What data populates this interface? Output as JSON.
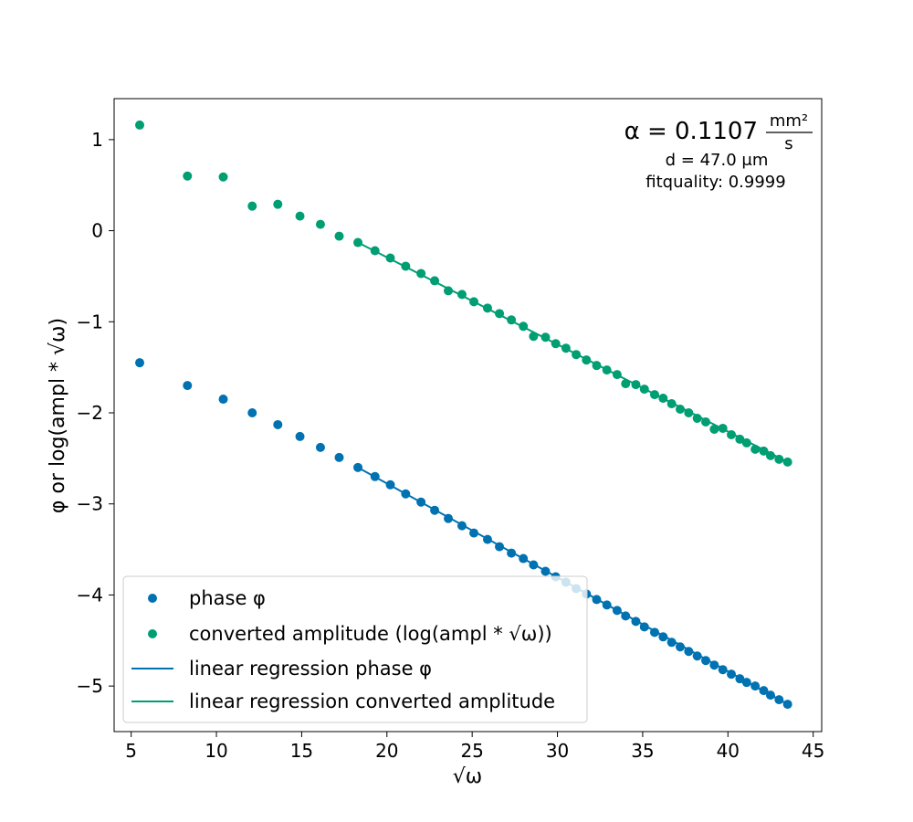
{
  "chart_data": {
    "type": "scatter",
    "xlabel": "√ω",
    "ylabel": "φ or log(ampl * √ω)",
    "xlim": [
      4,
      45.5
    ],
    "ylim": [
      -5.5,
      1.45
    ],
    "xticks": [
      5,
      10,
      15,
      20,
      25,
      30,
      35,
      40,
      45
    ],
    "yticks": [
      1,
      0,
      -1,
      -2,
      -3,
      -4,
      -5
    ],
    "xtick_labels": [
      "5",
      "10",
      "15",
      "20",
      "25",
      "30",
      "35",
      "40",
      "45"
    ],
    "ytick_labels": [
      "1",
      "0",
      "−1",
      "−2",
      "−3",
      "−4",
      "−5"
    ],
    "grid": false,
    "legend_position": "lower-left",
    "annotation": {
      "alpha_lhs": "α = 0.1107",
      "alpha_num": "mm²",
      "alpha_den": "s",
      "d": "d = 47.0 μm",
      "fitquality": "fitquality: 0.9999"
    },
    "x": [
      5.5,
      8.3,
      10.4,
      12.1,
      13.6,
      14.9,
      16.1,
      17.2,
      18.3,
      19.3,
      20.2,
      21.1,
      22.0,
      22.8,
      23.6,
      24.4,
      25.1,
      25.9,
      26.6,
      27.3,
      28.0,
      28.6,
      29.3,
      29.9,
      30.5,
      31.1,
      31.7,
      32.3,
      32.9,
      33.5,
      34.0,
      34.6,
      35.1,
      35.7,
      36.2,
      36.7,
      37.2,
      37.7,
      38.2,
      38.7,
      39.2,
      39.7,
      40.2,
      40.7,
      41.1,
      41.6,
      42.1,
      42.5,
      43.0,
      43.5
    ],
    "series": [
      {
        "name": "phase φ",
        "color": "#0072b2",
        "values": [
          -1.45,
          -1.7,
          -1.85,
          -2.0,
          -2.13,
          -2.26,
          -2.38,
          -2.49,
          -2.6,
          -2.7,
          -2.79,
          -2.89,
          -2.98,
          -3.07,
          -3.16,
          -3.24,
          -3.32,
          -3.39,
          -3.47,
          -3.54,
          -3.6,
          -3.67,
          -3.74,
          -3.8,
          -3.86,
          -3.93,
          -3.99,
          -4.05,
          -4.11,
          -4.17,
          -4.23,
          -4.29,
          -4.35,
          -4.41,
          -4.46,
          -4.52,
          -4.57,
          -4.62,
          -4.67,
          -4.72,
          -4.77,
          -4.82,
          -4.87,
          -4.92,
          -4.96,
          -5.0,
          -5.05,
          -5.1,
          -5.15,
          -5.2
        ],
        "fit": {
          "name": "linear regression phase φ",
          "x": [
            18.3,
            43.5
          ],
          "y": [
            -2.6,
            -5.2
          ]
        }
      },
      {
        "name": "converted amplitude (log(ampl * √ω))",
        "color": "#009e73",
        "values": [
          1.16,
          0.6,
          0.59,
          0.27,
          0.29,
          0.16,
          0.07,
          -0.06,
          -0.13,
          -0.22,
          -0.3,
          -0.39,
          -0.47,
          -0.55,
          -0.66,
          -0.7,
          -0.78,
          -0.85,
          -0.91,
          -0.98,
          -1.05,
          -1.16,
          -1.17,
          -1.24,
          -1.29,
          -1.36,
          -1.42,
          -1.48,
          -1.53,
          -1.58,
          -1.68,
          -1.69,
          -1.74,
          -1.8,
          -1.84,
          -1.9,
          -1.96,
          -2.0,
          -2.06,
          -2.1,
          -2.18,
          -2.17,
          -2.24,
          -2.29,
          -2.33,
          -2.4,
          -2.42,
          -2.47,
          -2.51,
          -2.54
        ],
        "fit": {
          "name": "linear regression converted amplitude",
          "x": [
            18.3,
            43.5
          ],
          "y": [
            -0.13,
            -2.54
          ]
        }
      }
    ]
  }
}
